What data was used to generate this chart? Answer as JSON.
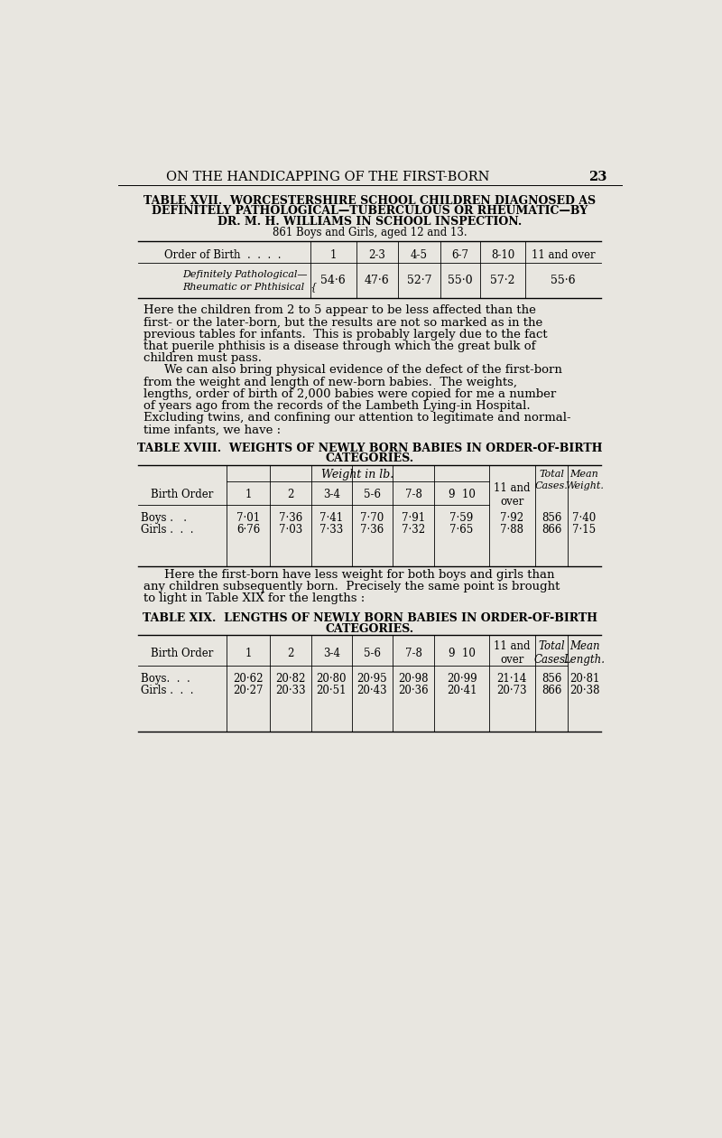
{
  "bg_color": "#e8e6e0",
  "page_header": "ON THE HANDICAPPING OF THE FIRST-BORN",
  "page_number": "23",
  "table17_title_line1": "TABLE XVII.  WORCESTERSHIRE SCHOOL CHILDREN DIAGNOSED AS",
  "table17_title_line2": "DEFINITELY PATHOLOGICAL—TUBERCULOUS OR RHEUMATIC—BY",
  "table17_title_line3": "DR. M. H. WILLIAMS IN SCHOOL INSPECTION.",
  "table17_subtitle": "861 Boys and Girls, aged 12 and 13.",
  "table17_values": [
    "54·6",
    "47·6",
    "52·7",
    "55·0",
    "57·2",
    "55·6"
  ],
  "para1_lines": [
    "Here the children from 2 to 5 appear to be less affected than the",
    "first- or the later-born, but the results are not so marked as in the",
    "previous tables for infants.  This is probably largely due to the fact",
    "that puerile phthisis is a disease through which the great bulk of",
    "children must pass.",
    "INDENT We can also bring physical evidence of the defect of the first-born",
    "from the weight and length of new-born babies.  The weights,",
    "lengths, order of birth of 2,000 babies were copied for me a number",
    "of years ago from the records of the Lambeth Lying-in Hospital.",
    "Excluding twins, and confining our attention to legitimate and normal-",
    "time infants, we have :"
  ],
  "table18_title_line1": "TABLE XVIII.  WEIGHTS OF NEWLY BORN BABIES IN ORDER-OF-BIRTH",
  "table18_title_line2": "CATEGORIES.",
  "table18_boys": [
    "Boys .   .",
    "7·01",
    "7·36",
    "7·41",
    "7·70",
    "7·91",
    "7·59",
    "7·92",
    "856",
    "7·40"
  ],
  "table18_girls": [
    "Girls .  .  .",
    "6·76",
    "7·03",
    "7·33",
    "7·36",
    "7·32",
    "7·65",
    "7·88",
    "866",
    "7·15"
  ],
  "para2_lines": [
    "Here the first-born have less weight for both boys and girls than",
    "any children subsequently born.  Precisely the same point is brought",
    "to light in Table XIX for the lengths :"
  ],
  "table19_title_line1": "TABLE XIX.  LENGTHS OF NEWLY BORN BABIES IN ORDER-OF-BIRTH",
  "table19_title_line2": "CATEGORIES.",
  "table19_boys": [
    "Boys.  .  .",
    "20·62",
    "20·82",
    "20·80",
    "20·95",
    "20·98",
    "20·99",
    "21·14",
    "856",
    "20·81"
  ],
  "table19_girls": [
    "Girls .  .  .",
    "20·27",
    "20·33",
    "20·51",
    "20·43",
    "20·36",
    "20·41",
    "20·73",
    "866",
    "20·38"
  ]
}
